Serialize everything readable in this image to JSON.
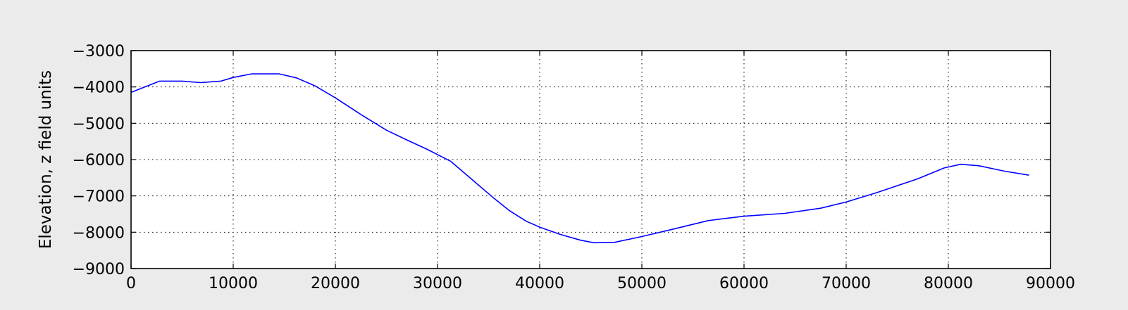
{
  "chart_data": {
    "type": "line",
    "title": "",
    "xlabel": "",
    "ylabel": "Elevation, z field units",
    "xlim": [
      0,
      90000
    ],
    "ylim": [
      -9000,
      -3000
    ],
    "grid": true,
    "x_ticks": [
      0,
      10000,
      20000,
      30000,
      40000,
      50000,
      60000,
      70000,
      80000,
      90000
    ],
    "y_ticks": [
      -3000,
      -4000,
      -5000,
      -6000,
      -7000,
      -8000,
      -9000
    ],
    "x_tick_labels": [
      "0",
      "10000",
      "20000",
      "30000",
      "40000",
      "50000",
      "60000",
      "70000",
      "80000",
      "90000"
    ],
    "y_tick_labels": [
      "−3000",
      "−4000",
      "−5000",
      "−6000",
      "−7000",
      "−8000",
      "−9000"
    ],
    "line_color": "#0000ff",
    "series": [
      {
        "x": [
          0,
          2800,
          5000,
          6800,
          8800,
          10000,
          11800,
          14500,
          16200,
          18000,
          20000,
          22500,
          25000,
          27000,
          29000,
          31300,
          33500,
          35500,
          37000,
          38700,
          40000,
          42000,
          44000,
          45300,
          47300,
          50000,
          53000,
          56500,
          60000,
          64000,
          67500,
          70000,
          73000,
          77000,
          79600,
          81200,
          83000,
          85500,
          87900
        ],
        "y": [
          -4150,
          -3840,
          -3840,
          -3880,
          -3840,
          -3740,
          -3640,
          -3640,
          -3750,
          -3970,
          -4300,
          -4760,
          -5190,
          -5460,
          -5720,
          -6050,
          -6580,
          -7060,
          -7400,
          -7700,
          -7860,
          -8060,
          -8220,
          -8290,
          -8280,
          -8120,
          -7920,
          -7680,
          -7560,
          -7480,
          -7340,
          -7170,
          -6910,
          -6530,
          -6230,
          -6130,
          -6170,
          -6320,
          -6430
        ]
      }
    ]
  }
}
